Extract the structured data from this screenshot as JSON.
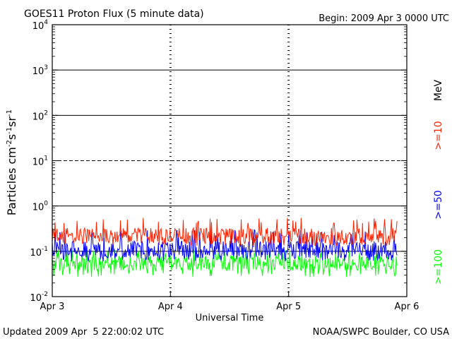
{
  "chart_data": {
    "type": "line",
    "title": "GOES11 Proton Flux (5 minute data)",
    "begin": "Begin: 2009 Apr 3 0000 UTC",
    "xlabel": "Universal Time",
    "ylabel_parts": [
      "Particles cm",
      "-2",
      "s",
      "-1",
      "sr",
      "-1"
    ],
    "y_scale": "log",
    "ylim": [
      0.01,
      10000
    ],
    "y_ticks": [
      {
        "base": "10",
        "exp": "-2",
        "value": 0.01
      },
      {
        "base": "10",
        "exp": "-1",
        "value": 0.1
      },
      {
        "base": "10",
        "exp": "0",
        "value": 1
      },
      {
        "base": "10",
        "exp": "1",
        "value": 10
      },
      {
        "base": "10",
        "exp": "2",
        "value": 100
      },
      {
        "base": "10",
        "exp": "3",
        "value": 1000
      },
      {
        "base": "10",
        "exp": "4",
        "value": 10000
      }
    ],
    "reference_lines": [
      {
        "value": 0.1,
        "style": "solid"
      },
      {
        "value": 1,
        "style": "solid"
      },
      {
        "value": 10,
        "style": "dashed"
      },
      {
        "value": 100,
        "style": "solid"
      },
      {
        "value": 1000,
        "style": "solid"
      }
    ],
    "xlim": [
      "2009-04-03",
      "2009-04-06"
    ],
    "x_ticks": [
      {
        "label": "Apr 3",
        "value": "2009-04-03"
      },
      {
        "label": "Apr 4",
        "value": "2009-04-04"
      },
      {
        "label": "Apr 5",
        "value": "2009-04-05"
      },
      {
        "label": "Apr 6",
        "value": "2009-04-06"
      }
    ],
    "day_dividers": [
      "2009-04-04",
      "2009-04-05"
    ],
    "data_end": "2009-04-05T22:00",
    "units": "MeV",
    "series": [
      {
        "name": ">=10",
        "color": "#ff2200",
        "typical": 0.22,
        "min": 0.13,
        "max": 0.55
      },
      {
        "name": ">=50",
        "color": "#0000ff",
        "typical": 0.11,
        "min": 0.06,
        "max": 0.3
      },
      {
        "name": ">=100",
        "color": "#00ff00",
        "typical": 0.055,
        "min": 0.027,
        "max": 0.11
      }
    ]
  },
  "footer": {
    "updated": "Updated 2009 Apr  5 22:00:02 UTC",
    "credit": "NOAA/SWPC Boulder, CO USA"
  }
}
